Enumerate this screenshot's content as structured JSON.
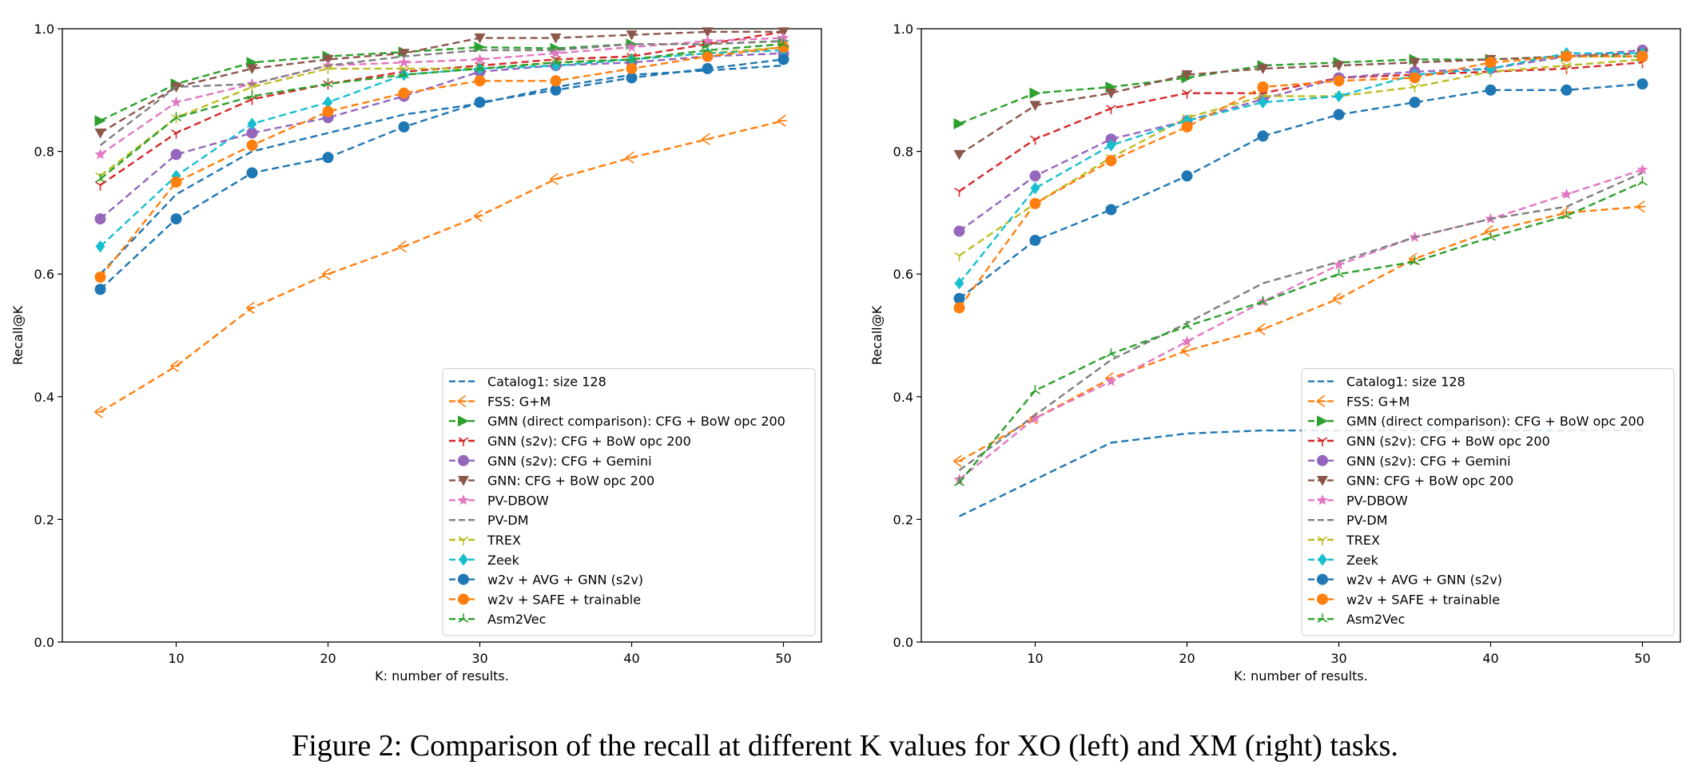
{
  "caption": "Figure 2: Comparison of the recall at different K values for XO (left) and XM (right) tasks.",
  "chart_data": [
    {
      "type": "line",
      "title": "",
      "panel": "left (XO)",
      "xlabel": "K: number of results.",
      "ylabel": "Recall@K",
      "xlim": [
        2.5,
        52.5
      ],
      "ylim": [
        0.0,
        1.0
      ],
      "xticks": [
        10,
        20,
        30,
        40,
        50
      ],
      "yticks": [
        0.0,
        0.2,
        0.4,
        0.6,
        0.8,
        1.0
      ],
      "ytick_labels": [
        "0.0",
        "0.2",
        "0.4",
        "0.6",
        "0.8",
        "1.0"
      ],
      "grid": false,
      "legend_position": "lower-right",
      "x": [
        5,
        10,
        15,
        20,
        25,
        30,
        35,
        40,
        45,
        50
      ],
      "series": [
        {
          "name": "Catalog1: size 128",
          "color": "#1f77b4",
          "marker": "none",
          "values": [
            0.6,
            0.73,
            0.8,
            0.83,
            0.86,
            0.878,
            0.905,
            0.925,
            0.932,
            0.94
          ]
        },
        {
          "name": "FSS: G+M",
          "color": "#ff7f0e",
          "marker": "tri_left",
          "values": [
            0.375,
            0.45,
            0.545,
            0.6,
            0.645,
            0.695,
            0.755,
            0.79,
            0.82,
            0.85
          ]
        },
        {
          "name": "GMN (direct comparison): CFG + BoW opc 200",
          "color": "#2ca02c",
          "marker": "triangle_right",
          "values": [
            0.85,
            0.91,
            0.945,
            0.955,
            0.962,
            0.97,
            0.968,
            0.975,
            0.975,
            0.98
          ]
        },
        {
          "name": "GNN (s2v): CFG + BoW opc 200",
          "color": "#d62728",
          "marker": "tri_down",
          "values": [
            0.745,
            0.83,
            0.885,
            0.91,
            0.93,
            0.94,
            0.95,
            0.955,
            0.975,
            0.995
          ]
        },
        {
          "name": "GNN (s2v): CFG + Gemini",
          "color": "#9467bd",
          "marker": "circle",
          "values": [
            0.69,
            0.795,
            0.83,
            0.855,
            0.89,
            0.93,
            0.94,
            0.945,
            0.955,
            0.96
          ]
        },
        {
          "name": "GNN: CFG + BoW opc 200",
          "color": "#8c564b",
          "marker": "triangle_down",
          "values": [
            0.83,
            0.905,
            0.935,
            0.95,
            0.96,
            0.985,
            0.985,
            0.99,
            0.995,
            0.995
          ]
        },
        {
          "name": "PV-DBOW",
          "color": "#e377c2",
          "marker": "star",
          "values": [
            0.795,
            0.88,
            0.91,
            0.94,
            0.945,
            0.95,
            0.96,
            0.97,
            0.98,
            0.985
          ]
        },
        {
          "name": "PV-DM",
          "color": "#7f7f7f",
          "marker": "none",
          "values": [
            0.81,
            0.905,
            0.91,
            0.94,
            0.955,
            0.965,
            0.965,
            0.975,
            0.975,
            0.98
          ]
        },
        {
          "name": "TREX",
          "color": "#bcbd22",
          "marker": "tri_down",
          "values": [
            0.76,
            0.855,
            0.905,
            0.935,
            0.935,
            0.935,
            0.945,
            0.95,
            0.96,
            0.97
          ]
        },
        {
          "name": "Zeek",
          "color": "#17becf",
          "marker": "diamond",
          "values": [
            0.645,
            0.76,
            0.845,
            0.88,
            0.925,
            0.935,
            0.94,
            0.95,
            0.96,
            0.965
          ]
        },
        {
          "name": "w2v + AVG + GNN (s2v)",
          "color": "#1f77b4",
          "marker": "circle",
          "values": [
            0.575,
            0.69,
            0.765,
            0.79,
            0.84,
            0.88,
            0.9,
            0.92,
            0.935,
            0.95
          ]
        },
        {
          "name": "w2v + SAFE + trainable",
          "color": "#ff7f0e",
          "marker": "circle",
          "values": [
            0.595,
            0.75,
            0.81,
            0.865,
            0.895,
            0.915,
            0.915,
            0.935,
            0.955,
            0.97
          ]
        },
        {
          "name": "Asm2Vec",
          "color": "#2ca02c",
          "marker": "star3",
          "values": [
            0.755,
            0.855,
            0.89,
            0.91,
            0.925,
            0.935,
            0.945,
            0.95,
            0.965,
            0.975
          ]
        }
      ]
    },
    {
      "type": "line",
      "title": "",
      "panel": "right (XM)",
      "xlabel": "K: number of results.",
      "ylabel": "Recall@K",
      "xlim": [
        2.5,
        52.5
      ],
      "ylim": [
        0.0,
        1.0
      ],
      "xticks": [
        10,
        20,
        30,
        40,
        50
      ],
      "yticks": [
        0.0,
        0.2,
        0.4,
        0.6,
        0.8,
        1.0
      ],
      "ytick_labels": [
        "0.0",
        "0.2",
        "0.4",
        "0.6",
        "0.8",
        "1.0"
      ],
      "grid": false,
      "legend_position": "lower-right",
      "x": [
        5,
        10,
        15,
        20,
        25,
        30,
        35,
        40,
        45,
        50
      ],
      "series": [
        {
          "name": "Catalog1: size 128",
          "color": "#1f77b4",
          "marker": "none",
          "values": [
            0.205,
            0.265,
            0.325,
            0.34,
            0.345,
            0.345,
            0.345,
            0.345,
            0.345,
            0.345
          ]
        },
        {
          "name": "FSS: G+M",
          "color": "#ff7f0e",
          "marker": "tri_left",
          "values": [
            0.295,
            0.365,
            0.43,
            0.475,
            0.51,
            0.56,
            0.625,
            0.67,
            0.7,
            0.71
          ]
        },
        {
          "name": "GMN (direct comparison): CFG + BoW opc 200",
          "color": "#2ca02c",
          "marker": "triangle_right",
          "values": [
            0.845,
            0.895,
            0.905,
            0.92,
            0.94,
            0.945,
            0.95,
            0.95,
            0.955,
            0.955
          ]
        },
        {
          "name": "GNN (s2v): CFG + BoW opc 200",
          "color": "#d62728",
          "marker": "tri_down",
          "values": [
            0.735,
            0.82,
            0.87,
            0.895,
            0.895,
            0.92,
            0.925,
            0.93,
            0.935,
            0.945
          ]
        },
        {
          "name": "GNN (s2v): CFG + Gemini",
          "color": "#9467bd",
          "marker": "circle",
          "values": [
            0.67,
            0.76,
            0.82,
            0.85,
            0.885,
            0.92,
            0.93,
            0.935,
            0.955,
            0.965
          ]
        },
        {
          "name": "GNN: CFG + BoW opc 200",
          "color": "#8c564b",
          "marker": "triangle_down",
          "values": [
            0.795,
            0.875,
            0.895,
            0.925,
            0.935,
            0.94,
            0.945,
            0.95,
            0.955,
            0.96
          ]
        },
        {
          "name": "PV-DBOW",
          "color": "#e377c2",
          "marker": "star",
          "values": [
            0.265,
            0.365,
            0.425,
            0.49,
            0.555,
            0.615,
            0.66,
            0.69,
            0.73,
            0.77
          ]
        },
        {
          "name": "PV-DM",
          "color": "#7f7f7f",
          "marker": "none",
          "values": [
            0.28,
            0.37,
            0.46,
            0.52,
            0.585,
            0.62,
            0.66,
            0.69,
            0.71,
            0.765
          ]
        },
        {
          "name": "TREX",
          "color": "#bcbd22",
          "marker": "tri_down",
          "values": [
            0.63,
            0.715,
            0.79,
            0.855,
            0.89,
            0.89,
            0.905,
            0.93,
            0.94,
            0.95
          ]
        },
        {
          "name": "Zeek",
          "color": "#17becf",
          "marker": "diamond",
          "values": [
            0.585,
            0.74,
            0.81,
            0.85,
            0.88,
            0.89,
            0.925,
            0.935,
            0.96,
            0.96
          ]
        },
        {
          "name": "w2v + AVG + GNN (s2v)",
          "color": "#1f77b4",
          "marker": "circle",
          "values": [
            0.56,
            0.655,
            0.705,
            0.76,
            0.825,
            0.86,
            0.88,
            0.9,
            0.9,
            0.91
          ]
        },
        {
          "name": "w2v + SAFE + trainable",
          "color": "#ff7f0e",
          "marker": "circle",
          "values": [
            0.545,
            0.715,
            0.785,
            0.84,
            0.905,
            0.915,
            0.92,
            0.945,
            0.955,
            0.955
          ]
        },
        {
          "name": "Asm2Vec",
          "color": "#2ca02c",
          "marker": "star3",
          "values": [
            0.26,
            0.41,
            0.47,
            0.515,
            0.555,
            0.6,
            0.62,
            0.66,
            0.695,
            0.75
          ]
        }
      ]
    }
  ]
}
